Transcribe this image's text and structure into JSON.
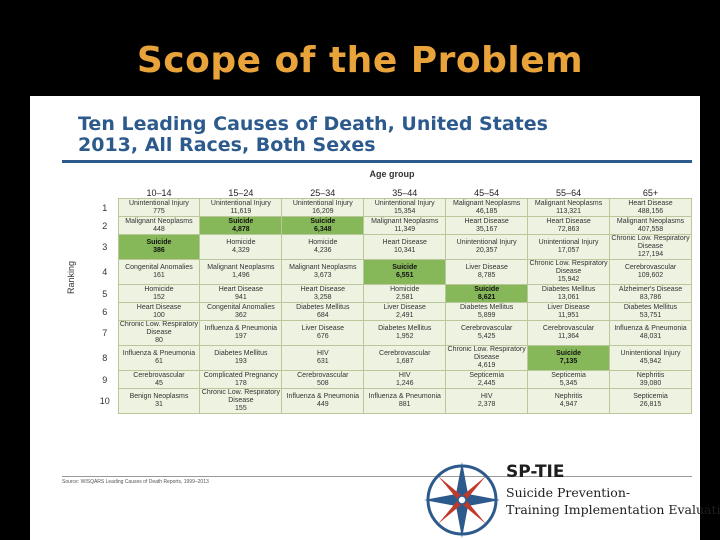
{
  "slide": {
    "title": "Scope of the Problem"
  },
  "doc": {
    "title_line1": "Ten Leading Causes of Death, United States",
    "title_line2": "2013, All Races, Both Sexes",
    "age_group_label": "Age group",
    "ranking_label": "Ranking",
    "source": "Source: WISQARS Leading Causes of Death Reports, 1999–2013"
  },
  "table": {
    "headers": [
      "10–14",
      "15–24",
      "25–34",
      "35–44",
      "45–54",
      "55–64",
      "65+"
    ],
    "rows": [
      {
        "rank": "1",
        "cells": [
          {
            "cause": "Unintentional Injury",
            "value": "775"
          },
          {
            "cause": "Unintentional Injury",
            "value": "11,619"
          },
          {
            "cause": "Unintentional Injury",
            "value": "16,209"
          },
          {
            "cause": "Unintentional Injury",
            "value": "15,354"
          },
          {
            "cause": "Malignant Neoplasms",
            "value": "46,185"
          },
          {
            "cause": "Malignant Neoplasms",
            "value": "113,321"
          },
          {
            "cause": "Heart Disease",
            "value": "488,156"
          }
        ]
      },
      {
        "rank": "2",
        "cells": [
          {
            "cause": "Malignant Neoplasms",
            "value": "448"
          },
          {
            "cause": "Suicide",
            "value": "4,878",
            "hl": true
          },
          {
            "cause": "Suicide",
            "value": "6,348",
            "hl": true
          },
          {
            "cause": "Malignant Neoplasms",
            "value": "11,349"
          },
          {
            "cause": "Heart Disease",
            "value": "35,167"
          },
          {
            "cause": "Heart Disease",
            "value": "72,863"
          },
          {
            "cause": "Malignant Neoplasms",
            "value": "407,558"
          }
        ]
      },
      {
        "rank": "3",
        "cells": [
          {
            "cause": "Suicide",
            "value": "386",
            "hl": true
          },
          {
            "cause": "Homicide",
            "value": "4,329"
          },
          {
            "cause": "Homicide",
            "value": "4,236"
          },
          {
            "cause": "Heart Disease",
            "value": "10,341"
          },
          {
            "cause": "Unintentional Injury",
            "value": "20,357"
          },
          {
            "cause": "Unintentional Injury",
            "value": "17,057"
          },
          {
            "cause": "Chronic Low. Respiratory Disease",
            "value": "127,194"
          }
        ]
      },
      {
        "rank": "4",
        "cells": [
          {
            "cause": "Congenital Anomalies",
            "value": "161"
          },
          {
            "cause": "Malignant Neoplasms",
            "value": "1,496"
          },
          {
            "cause": "Malignant Neoplasms",
            "value": "3,673"
          },
          {
            "cause": "Suicide",
            "value": "6,551",
            "hl": true
          },
          {
            "cause": "Liver Disease",
            "value": "8,785"
          },
          {
            "cause": "Chronic Low. Respiratory Disease",
            "value": "15,942"
          },
          {
            "cause": "Cerebrovascular",
            "value": "109,602"
          }
        ]
      },
      {
        "rank": "5",
        "cells": [
          {
            "cause": "Homicide",
            "value": "152"
          },
          {
            "cause": "Heart Disease",
            "value": "941"
          },
          {
            "cause": "Heart Disease",
            "value": "3,258"
          },
          {
            "cause": "Homicide",
            "value": "2,581"
          },
          {
            "cause": "Suicide",
            "value": "8,621",
            "hl": true
          },
          {
            "cause": "Diabetes Mellitus",
            "value": "13,061"
          },
          {
            "cause": "Alzheimer's Disease",
            "value": "83,786"
          }
        ]
      },
      {
        "rank": "6",
        "cells": [
          {
            "cause": "Heart Disease",
            "value": "100"
          },
          {
            "cause": "Congenital Anomalies",
            "value": "362"
          },
          {
            "cause": "Diabetes Mellitus",
            "value": "684"
          },
          {
            "cause": "Liver Disease",
            "value": "2,491"
          },
          {
            "cause": "Diabetes Mellitus",
            "value": "5,899"
          },
          {
            "cause": "Liver Disease",
            "value": "11,951"
          },
          {
            "cause": "Diabetes Mellitus",
            "value": "53,751"
          }
        ]
      },
      {
        "rank": "7",
        "cells": [
          {
            "cause": "Chronic Low. Respiratory Disease",
            "value": "80"
          },
          {
            "cause": "Influenza & Pneumonia",
            "value": "197"
          },
          {
            "cause": "Liver Disease",
            "value": "676"
          },
          {
            "cause": "Diabetes Mellitus",
            "value": "1,952"
          },
          {
            "cause": "Cerebrovascular",
            "value": "5,425"
          },
          {
            "cause": "Cerebrovascular",
            "value": "11,364"
          },
          {
            "cause": "Influenza & Pneumonia",
            "value": "48,031"
          }
        ]
      },
      {
        "rank": "8",
        "cells": [
          {
            "cause": "Influenza & Pneumonia",
            "value": "61"
          },
          {
            "cause": "Diabetes Mellitus",
            "value": "193"
          },
          {
            "cause": "HIV",
            "value": "631"
          },
          {
            "cause": "Cerebrovascular",
            "value": "1,687"
          },
          {
            "cause": "Chronic Low. Respiratory Disease",
            "value": "4,619"
          },
          {
            "cause": "Suicide",
            "value": "7,135",
            "hl": true
          },
          {
            "cause": "Unintentional Injury",
            "value": "45,942"
          }
        ]
      },
      {
        "rank": "9",
        "cells": [
          {
            "cause": "Cerebrovascular",
            "value": "45"
          },
          {
            "cause": "Complicated Pregnancy",
            "value": "178"
          },
          {
            "cause": "Cerebrovascular",
            "value": "508"
          },
          {
            "cause": "HIV",
            "value": "1,246"
          },
          {
            "cause": "Septicemia",
            "value": "2,445"
          },
          {
            "cause": "Septicemia",
            "value": "5,345"
          },
          {
            "cause": "Nephritis",
            "value": "39,080"
          }
        ]
      },
      {
        "rank": "10",
        "cells": [
          {
            "cause": "Benign Neoplasms",
            "value": "31"
          },
          {
            "cause": "Chronic Low. Respiratory Disease",
            "value": "155"
          },
          {
            "cause": "Influenza & Pneumonia",
            "value": "449"
          },
          {
            "cause": "Influenza & Pneumonia",
            "value": "881"
          },
          {
            "cause": "HIV",
            "value": "2,378"
          },
          {
            "cause": "Nephritis",
            "value": "4,947"
          },
          {
            "cause": "Septicemia",
            "value": "26,815"
          }
        ]
      }
    ]
  },
  "logo": {
    "acronym": "SP-TIE",
    "line1": "Suicide Prevention-",
    "line2": "Training Implementation Evaluation"
  },
  "colors": {
    "title": "#e8a33a",
    "doc_title": "#2d5a8c",
    "highlight": "#86b85a",
    "cell": "#edf2e1"
  }
}
